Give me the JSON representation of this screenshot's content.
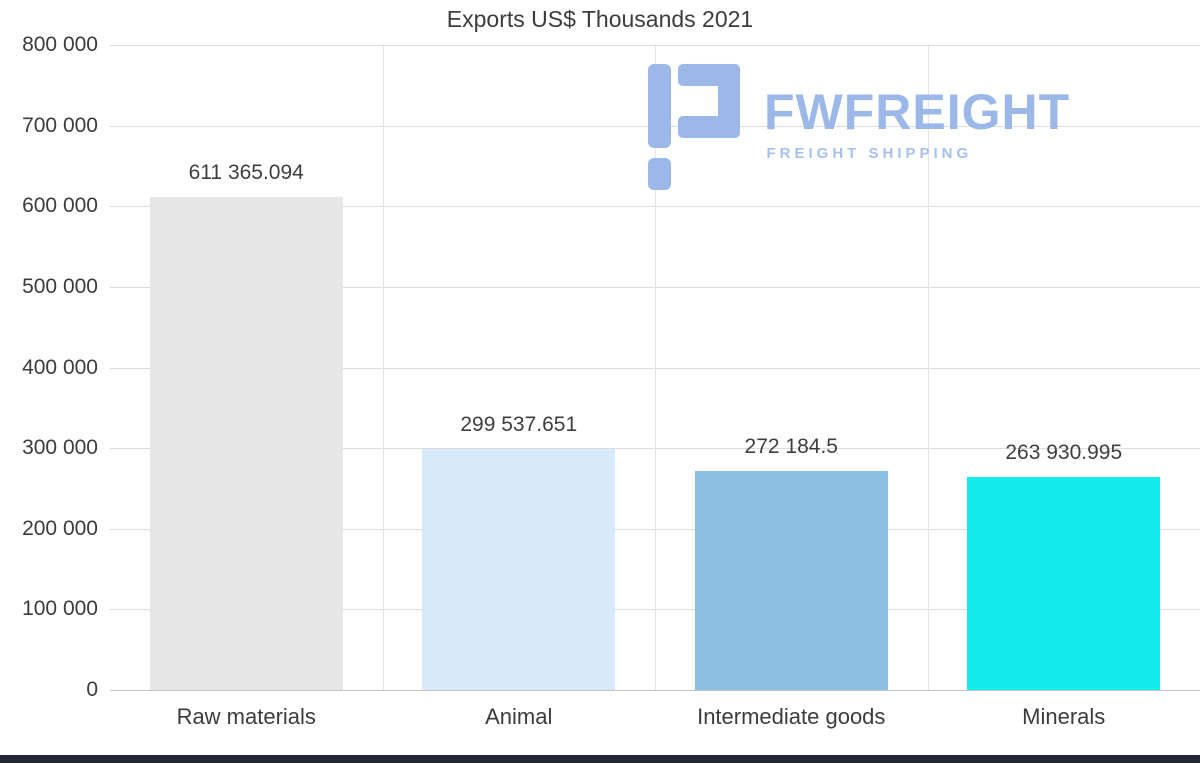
{
  "chart_data": {
    "type": "bar",
    "title": "Exports US$ Thousands 2021",
    "categories": [
      "Raw materials",
      "Animal",
      "Intermediate goods",
      "Minerals"
    ],
    "values": [
      611365.094,
      299537.651,
      272184.5,
      263930.995
    ],
    "value_labels": [
      "611 365.094",
      "299 537.651",
      "272 184.5",
      "263 930.995"
    ],
    "bar_colors": [
      "#e7e7e7",
      "#d8e9f9",
      "#8dbfe3",
      "#12ecec"
    ],
    "xlabel": "",
    "ylabel": "",
    "ylim": [
      0,
      800000
    ],
    "ytick_step": 100000,
    "ytick_labels": [
      "800 000",
      "700 000",
      "600 000",
      "500 000",
      "400 000",
      "300 000",
      "200 000",
      "100 000",
      "0"
    ],
    "grid": true,
    "legend": false
  },
  "logo": {
    "brand": "FWFREIGHT",
    "tagline": "FREIGHT SHIPPING",
    "color": "#9cb8e8"
  }
}
